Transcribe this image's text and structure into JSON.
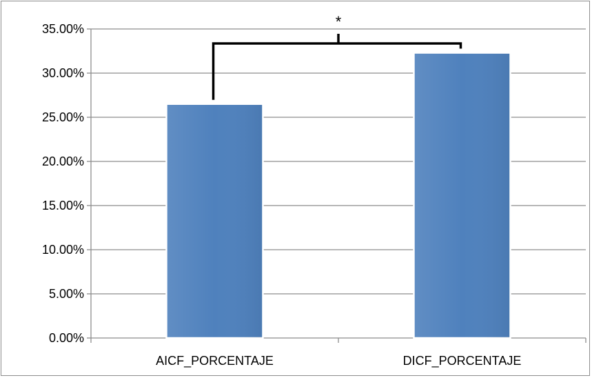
{
  "chart_data": {
    "type": "bar",
    "categories": [
      "AICF_PORCENTAJE",
      "DICF_PORCENTAJE"
    ],
    "values": [
      26.5,
      32.3
    ],
    "ylim": [
      0,
      35
    ],
    "y_ticks": [
      0,
      5,
      10,
      15,
      20,
      25,
      30,
      35
    ],
    "y_tick_labels": [
      "0.00%",
      "5.00%",
      "10.00%",
      "15.00%",
      "20.00%",
      "25.00%",
      "30.00%",
      "35.00%"
    ],
    "title": "",
    "xlabel": "",
    "ylabel": "",
    "grid": true,
    "legend": "none",
    "bar_color": "#4f81bd",
    "significance": {
      "between": [
        "AICF_PORCENTAJE",
        "DICF_PORCENTAJE"
      ],
      "label": "*"
    }
  }
}
